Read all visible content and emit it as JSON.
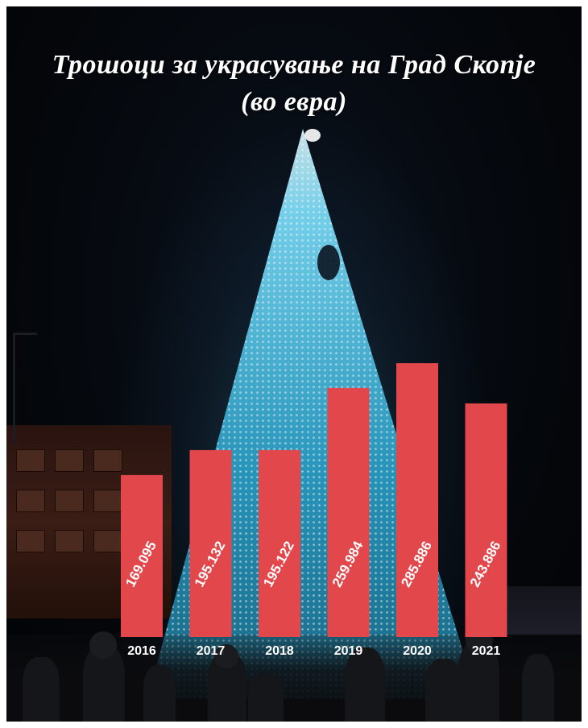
{
  "title": {
    "line1": "Трошоци за украсување на Град Скопје",
    "line2": "(во евра)"
  },
  "colors": {
    "bar": "#e2474c",
    "text": "#ffffff",
    "background": "#05080d",
    "tree_light": "#7fe3ff"
  },
  "chart_data": {
    "type": "bar",
    "categories": [
      "2016",
      "2017",
      "2018",
      "2019",
      "2020",
      "2021"
    ],
    "values": [
      169095,
      195132,
      195122,
      259984,
      285886,
      243886
    ],
    "value_labels": [
      "169.095",
      "195.132",
      "195.122",
      "259.984",
      "285.886",
      "243.886"
    ],
    "title": "Трошоци за украсување на Град Скопје (во евра)",
    "xlabel": "",
    "ylabel": "",
    "grid": false,
    "legend": "none"
  }
}
